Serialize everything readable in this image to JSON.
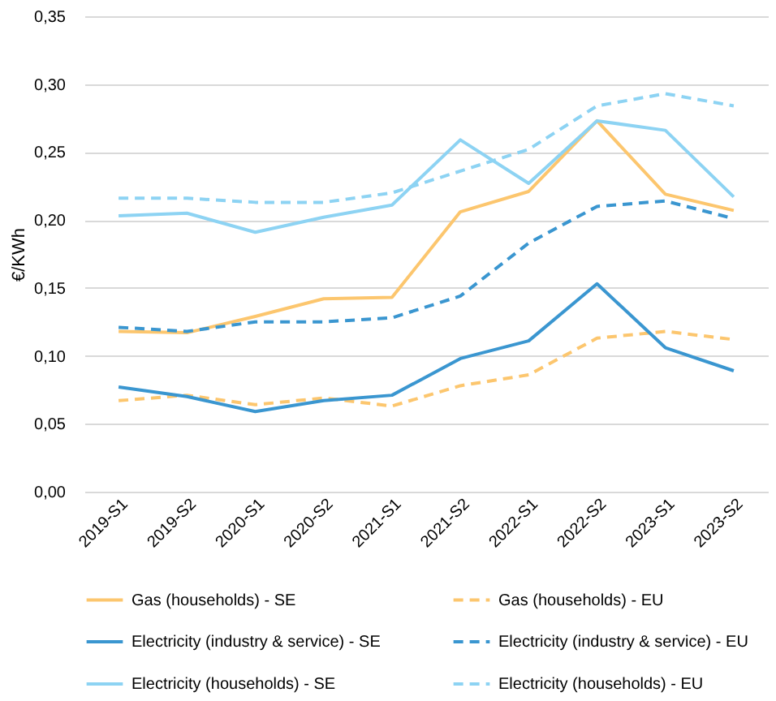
{
  "chart_data": {
    "type": "line",
    "ylabel": "€/KWh",
    "categories": [
      "2019-S1",
      "2019-S2",
      "2020-S1",
      "2020-S2",
      "2021-S1",
      "2021-S2",
      "2022-S1",
      "2022-S2",
      "2023-S1",
      "2023-S2"
    ],
    "ylim": [
      0,
      0.35
    ],
    "yticks": [
      {
        "value": 0,
        "label": "0,00"
      },
      {
        "value": 0.05,
        "label": "0,05"
      },
      {
        "value": 0.1,
        "label": "0,10"
      },
      {
        "value": 0.15,
        "label": "0,15"
      },
      {
        "value": 0.2,
        "label": "0,20"
      },
      {
        "value": 0.25,
        "label": "0,25"
      },
      {
        "value": 0.3,
        "label": "0,30"
      },
      {
        "value": 0.35,
        "label": "0,35"
      }
    ],
    "grid": "y",
    "legend": "bottom",
    "marker": "none",
    "series": [
      {
        "name": "Gas (households) - SE",
        "color": "#fcc66e",
        "line_style": "solid",
        "values": [
          0.118,
          0.117,
          0.129,
          0.142,
          0.143,
          0.206,
          0.221,
          0.273,
          0.219,
          0.207
        ]
      },
      {
        "name": "Gas (households) - EU",
        "color": "#fcc66e",
        "line_style": "dashed",
        "values": [
          0.067,
          0.071,
          0.064,
          0.069,
          0.063,
          0.078,
          0.086,
          0.113,
          0.118,
          0.112
        ]
      },
      {
        "name": "Electricity (industry & service) - SE",
        "color": "#3a96d0",
        "line_style": "solid",
        "values": [
          0.077,
          0.07,
          0.059,
          0.067,
          0.071,
          0.098,
          0.111,
          0.153,
          0.106,
          0.089
        ]
      },
      {
        "name": "Electricity (industry & service) - EU",
        "color": "#3a96d0",
        "line_style": "dashed",
        "values": [
          0.121,
          0.118,
          0.125,
          0.125,
          0.128,
          0.144,
          0.183,
          0.21,
          0.214,
          0.201
        ]
      },
      {
        "name": "Electricity (households) - SE",
        "color": "#8dd3f3",
        "line_style": "solid",
        "values": [
          0.203,
          0.205,
          0.191,
          0.202,
          0.211,
          0.259,
          0.227,
          0.273,
          0.266,
          0.217
        ]
      },
      {
        "name": "Electricity (households) - EU",
        "color": "#8dd3f3",
        "line_style": "dashed",
        "values": [
          0.216,
          0.216,
          0.213,
          0.213,
          0.22,
          0.236,
          0.252,
          0.284,
          0.293,
          0.284
        ]
      }
    ]
  }
}
